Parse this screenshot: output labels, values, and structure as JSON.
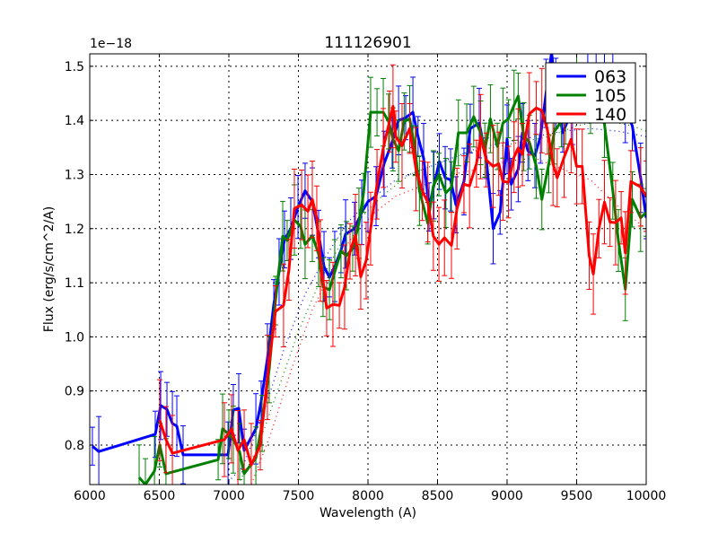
{
  "chart_data": {
    "type": "line",
    "title": "111126901",
    "xlabel": "Wavelength (A)",
    "ylabel": "Flux (erg/s/cm^2/A)",
    "offset_text": "1e−18",
    "xlim": [
      6000,
      10000
    ],
    "ylim": [
      0.727,
      1.523
    ],
    "y_scale_factor": 1e-18,
    "xticks": [
      6000,
      6500,
      7000,
      7500,
      8000,
      8500,
      9000,
      9500,
      10000
    ],
    "xtick_labels": [
      "6000",
      "6500",
      "7000",
      "7500",
      "8000",
      "8500",
      "9000",
      "9500",
      "10000"
    ],
    "yticks": [
      0.8,
      0.9,
      1.0,
      1.1,
      1.2,
      1.3,
      1.4,
      1.5
    ],
    "ytick_labels": [
      "0.8",
      "0.9",
      "1.0",
      "1.1",
      "1.2",
      "1.3",
      "1.4",
      "1.5"
    ],
    "grid": true,
    "legend_position": "top-right",
    "series": [
      {
        "name": "063",
        "color": "#0000ff",
        "yerr": 0.05,
        "x": [
          6019,
          6065,
          6471,
          6510,
          6555,
          6594,
          6626,
          6671,
          6994,
          7032,
          7071,
          7110,
          7194,
          7232,
          7277,
          7323,
          7361,
          7400,
          7445,
          7497,
          7548,
          7600,
          7645,
          7684,
          7723,
          7761,
          7806,
          7839,
          7903,
          7955,
          8000,
          8058,
          8116,
          8174,
          8220,
          8271,
          8323,
          8360,
          8400,
          8439,
          8474,
          8513,
          8555,
          8594,
          8632,
          8690,
          8735,
          8800,
          8850,
          8900,
          8950,
          9000,
          9030,
          9080,
          9110,
          9150,
          9200,
          9240,
          9280,
          9320,
          9350,
          9400,
          9470,
          9530,
          9580,
          9640,
          9700,
          9760,
          9800,
          9850,
          9900,
          9960,
          10000
        ],
        "y": [
          0.798,
          0.788,
          0.82,
          0.873,
          0.866,
          0.84,
          0.835,
          0.782,
          0.782,
          0.865,
          0.868,
          0.79,
          0.83,
          0.88,
          0.96,
          1.06,
          1.12,
          1.18,
          1.2,
          1.24,
          1.27,
          1.25,
          1.19,
          1.13,
          1.11,
          1.13,
          1.16,
          1.19,
          1.2,
          1.23,
          1.25,
          1.26,
          1.32,
          1.36,
          1.4,
          1.405,
          1.415,
          1.37,
          1.33,
          1.24,
          1.28,
          1.324,
          1.294,
          1.29,
          1.244,
          1.287,
          1.385,
          1.395,
          1.33,
          1.2,
          1.23,
          1.365,
          1.282,
          1.31,
          1.377,
          1.344,
          1.335,
          1.37,
          1.45,
          1.526,
          1.45,
          1.377,
          1.42,
          1.45,
          1.48,
          1.5,
          1.49,
          1.47,
          1.45,
          1.42,
          1.39,
          1.294,
          1.22
        ]
      },
      {
        "name": "105",
        "color": "#008000",
        "yerr": 0.05,
        "x": [
          6355,
          6400,
          6465,
          6503,
          6548,
          6923,
          6955,
          7000,
          7032,
          7077,
          7110,
          7194,
          7239,
          7290,
          7335,
          7387,
          7419,
          7471,
          7516,
          7548,
          7600,
          7645,
          7677,
          7723,
          7761,
          7806,
          7845,
          7890,
          7935,
          7968,
          8019,
          8065,
          8110,
          8148,
          8180,
          8220,
          8260,
          8300,
          8340,
          8370,
          8430,
          8470,
          8510,
          8560,
          8600,
          8650,
          8710,
          8760,
          8810,
          8840,
          8880,
          8930,
          8970,
          9010,
          9050,
          9080,
          9120,
          9160,
          9210,
          9250,
          9300,
          9340,
          9390,
          9420,
          9460,
          9500,
          9560,
          9600,
          9650,
          9700,
          9760,
          9800,
          9850,
          9900,
          9960,
          10000
        ],
        "y": [
          0.74,
          0.727,
          0.752,
          0.8,
          0.747,
          0.773,
          0.83,
          0.82,
          0.81,
          0.788,
          0.747,
          0.776,
          0.84,
          0.94,
          1.067,
          1.186,
          1.178,
          1.216,
          1.204,
          1.171,
          1.187,
          1.153,
          1.092,
          1.087,
          1.12,
          1.158,
          1.15,
          1.163,
          1.21,
          1.266,
          1.415,
          1.415,
          1.415,
          1.398,
          1.365,
          1.344,
          1.398,
          1.403,
          1.344,
          1.27,
          1.21,
          1.279,
          1.3,
          1.266,
          1.277,
          1.377,
          1.377,
          1.407,
          1.377,
          1.345,
          1.403,
          1.352,
          1.395,
          1.403,
          1.428,
          1.445,
          1.37,
          1.36,
          1.315,
          1.254,
          1.32,
          1.38,
          1.398,
          1.42,
          1.45,
          1.48,
          1.46,
          1.44,
          1.45,
          1.393,
          1.27,
          1.178,
          1.088,
          1.254,
          1.22,
          1.23
        ]
      },
      {
        "name": "140",
        "color": "#ff0000",
        "yerr": 0.06,
        "x": [
          6503,
          6548,
          6594,
          6968,
          7019,
          7065,
          7110,
          7161,
          7226,
          7277,
          7335,
          7393,
          7432,
          7471,
          7523,
          7568,
          7600,
          7632,
          7658,
          7703,
          7748,
          7794,
          7832,
          7871,
          7910,
          7948,
          7987,
          8019,
          8065,
          8110,
          8155,
          8180,
          8200,
          8245,
          8300,
          8345,
          8390,
          8430,
          8470,
          8510,
          8550,
          8600,
          8640,
          8690,
          8730,
          8780,
          8810,
          8850,
          8900,
          8940,
          8970,
          9010,
          9050,
          9080,
          9110,
          9160,
          9210,
          9250,
          9290,
          9330,
          9360,
          9410,
          9460,
          9500,
          9540,
          9590,
          9620,
          9660,
          9700,
          9740,
          9780,
          9820,
          9850,
          9890,
          9960,
          10000
        ],
        "y": [
          0.846,
          0.81,
          0.785,
          0.81,
          0.83,
          0.79,
          0.81,
          0.763,
          0.8,
          0.925,
          1.047,
          1.058,
          1.124,
          1.237,
          1.244,
          1.232,
          1.254,
          1.219,
          1.141,
          1.053,
          1.06,
          1.058,
          1.092,
          1.158,
          1.188,
          1.111,
          1.141,
          1.2,
          1.282,
          1.349,
          1.398,
          1.426,
          1.37,
          1.353,
          1.385,
          1.31,
          1.27,
          1.249,
          1.186,
          1.171,
          1.183,
          1.169,
          1.237,
          1.282,
          1.279,
          1.32,
          1.37,
          1.327,
          1.315,
          1.32,
          1.287,
          1.286,
          1.332,
          1.349,
          1.337,
          1.412,
          1.423,
          1.418,
          1.382,
          1.32,
          1.294,
          1.332,
          1.365,
          1.315,
          1.315,
          1.15,
          1.116,
          1.2,
          1.249,
          1.212,
          1.211,
          1.22,
          1.155,
          1.287,
          1.277,
          1.26
        ]
      }
    ],
    "fits": [
      {
        "name": "063 fit",
        "color": "#0000ff",
        "x": [
          6950,
          7100,
          7250,
          7400,
          7550,
          7700,
          7850,
          8000,
          8200,
          8400,
          8600,
          8800,
          9000,
          9200,
          9400,
          9600,
          9800,
          10000
        ],
        "y": [
          0.72,
          0.76,
          0.86,
          0.98,
          1.08,
          1.15,
          1.21,
          1.25,
          1.29,
          1.31,
          1.33,
          1.35,
          1.36,
          1.37,
          1.38,
          1.385,
          1.38,
          1.37
        ]
      },
      {
        "name": "105 fit",
        "color": "#008000",
        "x": [
          7050,
          7200,
          7350,
          7500,
          7650,
          7800,
          7950,
          8100,
          8300,
          8500,
          8700,
          8900,
          9100,
          9300,
          9500,
          9700,
          9900,
          10000
        ],
        "y": [
          0.72,
          0.79,
          0.9,
          1.01,
          1.1,
          1.17,
          1.22,
          1.26,
          1.3,
          1.32,
          1.34,
          1.35,
          1.36,
          1.37,
          1.39,
          1.4,
          1.39,
          1.38
        ]
      },
      {
        "name": "140 fit",
        "color": "#ff0000",
        "x": [
          7150,
          7300,
          7450,
          7600,
          7750,
          7900,
          8050,
          8200,
          8400,
          8600,
          8800,
          9000,
          9200,
          9400,
          9600,
          9800,
          10000
        ],
        "y": [
          0.72,
          0.82,
          0.94,
          1.05,
          1.13,
          1.19,
          1.23,
          1.26,
          1.28,
          1.3,
          1.31,
          1.325,
          1.33,
          1.31,
          1.29,
          1.24,
          1.2
        ]
      }
    ]
  }
}
